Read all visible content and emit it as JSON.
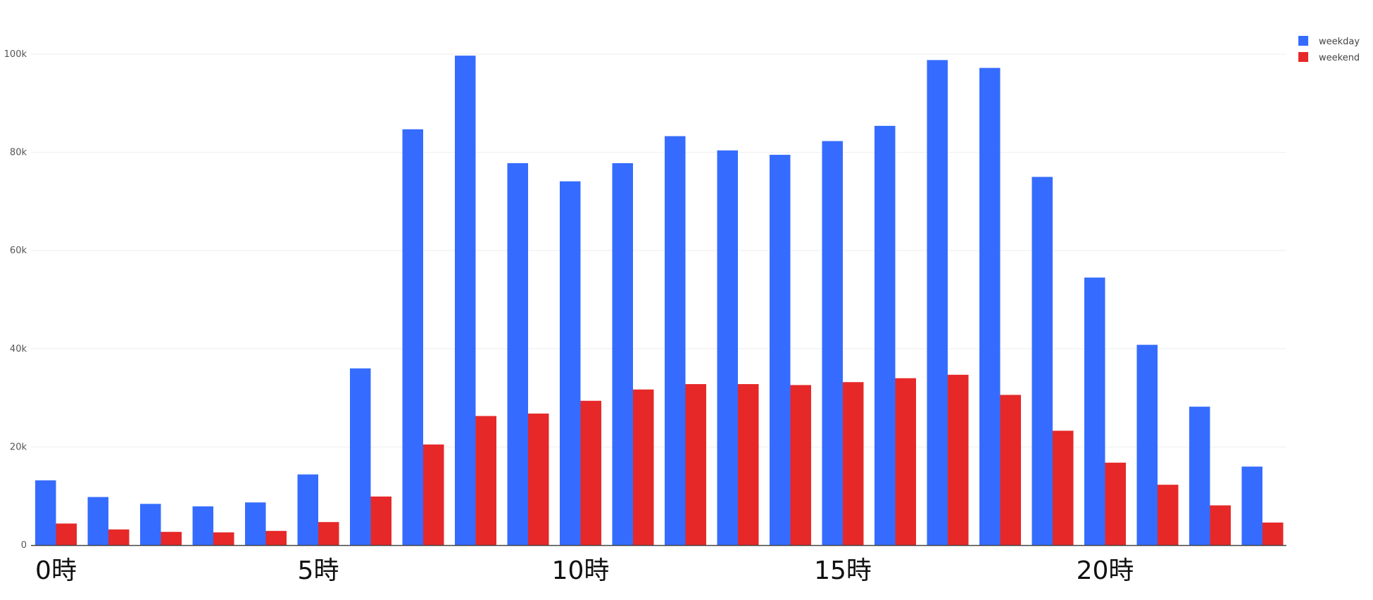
{
  "chart_data": {
    "type": "bar",
    "title": "",
    "xlabel": "",
    "ylabel": "",
    "ylim": [
      0,
      100000
    ],
    "yticks": [
      0,
      20000,
      40000,
      60000,
      80000,
      100000
    ],
    "ytick_labels": [
      "0",
      "20k",
      "40k",
      "60k",
      "80k",
      "100k"
    ],
    "grid": true,
    "legend_position": "top-right",
    "categories": [
      0,
      1,
      2,
      3,
      4,
      5,
      6,
      7,
      8,
      9,
      10,
      11,
      12,
      13,
      14,
      15,
      16,
      17,
      18,
      19,
      20,
      21,
      22,
      23
    ],
    "xtick_positions": [
      0,
      5,
      10,
      15,
      20
    ],
    "xtick_labels": [
      "0時",
      "5時",
      "10時",
      "15時",
      "20時"
    ],
    "series": [
      {
        "name": "weekday",
        "color": "#356cff",
        "values": [
          13200,
          9800,
          8400,
          7900,
          8700,
          14400,
          36000,
          84700,
          99700,
          77800,
          74100,
          77800,
          83300,
          80400,
          79500,
          82300,
          85400,
          98800,
          97200,
          75000,
          54500,
          40800,
          28200,
          16000
        ]
      },
      {
        "name": "weekend",
        "color": "#e62828",
        "values": [
          4400,
          3200,
          2700,
          2600,
          2900,
          4700,
          9900,
          20500,
          26300,
          26800,
          29400,
          31700,
          32800,
          32800,
          32600,
          33200,
          34000,
          34700,
          30600,
          23300,
          16800,
          12300,
          8100,
          4600
        ]
      }
    ]
  }
}
